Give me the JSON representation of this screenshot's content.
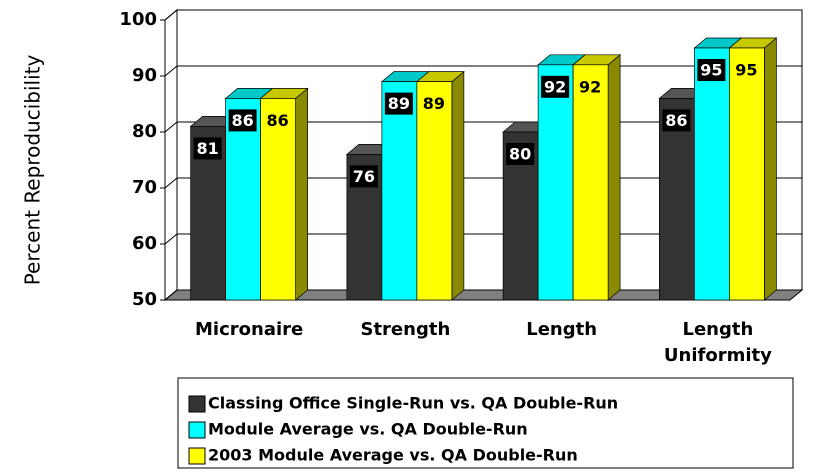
{
  "chart_data": {
    "type": "bar3d",
    "y_axis_label": "Percent Reproducibility",
    "categories": [
      "Micronaire",
      "Strength",
      "Length",
      "Length Uniformity"
    ],
    "series": [
      {
        "name": "Classing Office Single-Run vs. QA Double-Run",
        "color": "#333333",
        "values": [
          81,
          76,
          80,
          86
        ]
      },
      {
        "name": "Module Average vs. QA Double-Run",
        "color": "#00ffff",
        "values": [
          86,
          89,
          92,
          95
        ]
      },
      {
        "name": "2003 Module Average vs. QA Double-Run",
        "color": "#ffff00",
        "values": [
          86,
          89,
          92,
          95
        ]
      }
    ],
    "ylim": [
      50,
      100
    ],
    "yticks": [
      50,
      60,
      70,
      80,
      90,
      100
    ],
    "grid": true
  }
}
